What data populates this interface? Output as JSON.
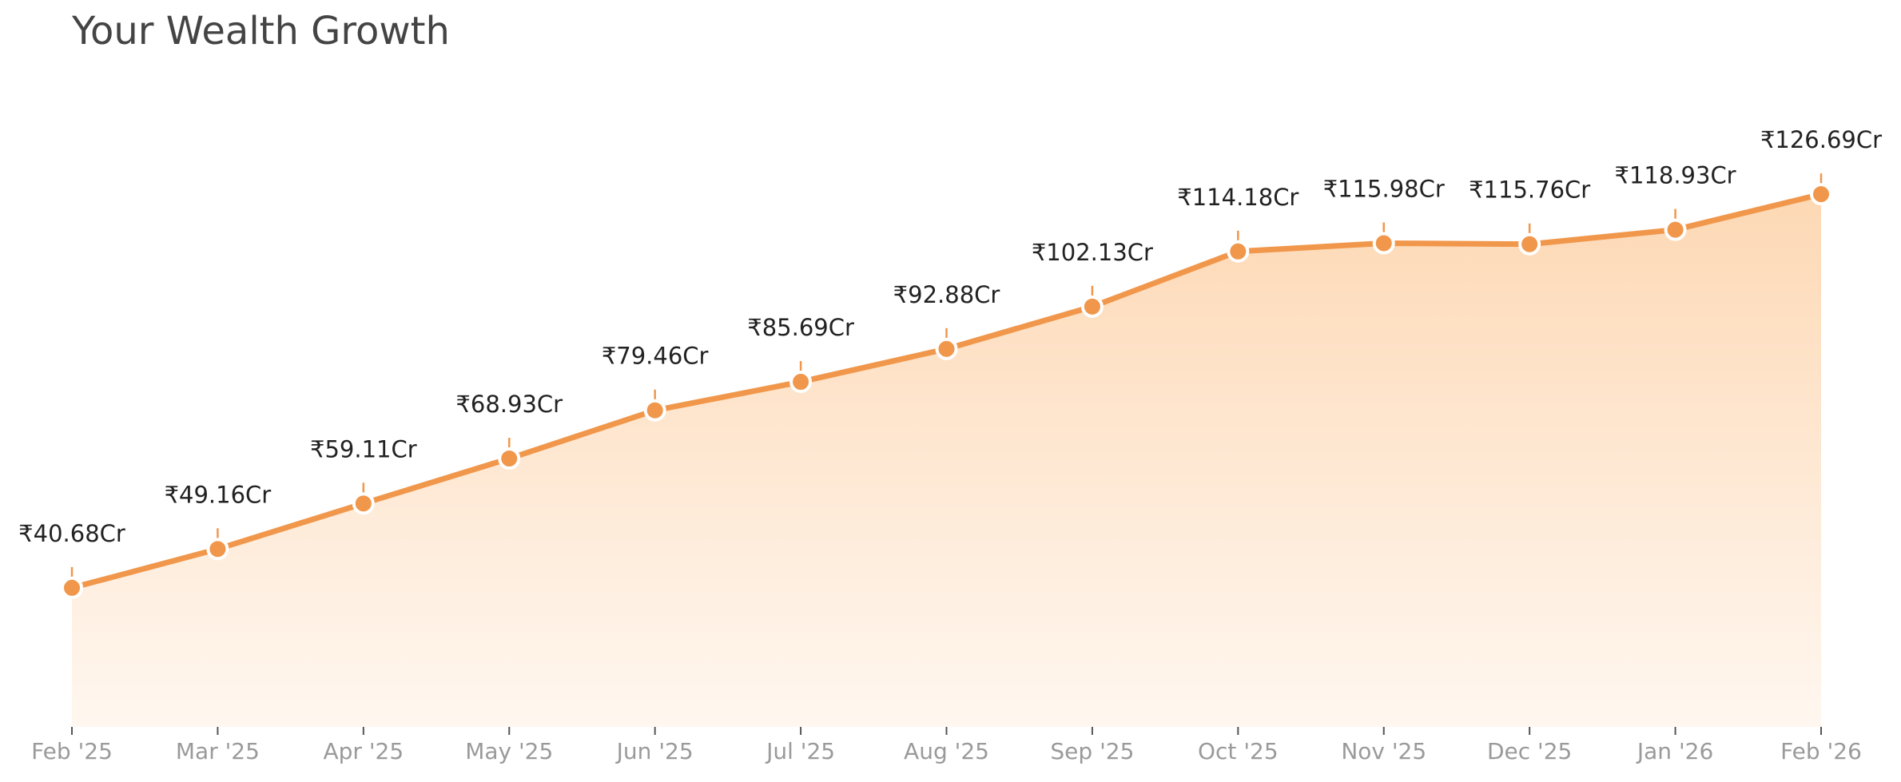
{
  "chart_data": {
    "type": "line",
    "title": "Your Wealth Growth",
    "categories": [
      "Feb '25",
      "Mar '25",
      "Apr '25",
      "May '25",
      "Jun '25",
      "Jul '25",
      "Aug '25",
      "Sep '25",
      "Oct '25",
      "Nov '25",
      "Dec '25",
      "Jan '26",
      "Feb '26"
    ],
    "series": [
      {
        "color": "#f0974b",
        "values": [
          40.68,
          49.16,
          59.11,
          68.93,
          79.46,
          85.69,
          92.88,
          102.13,
          114.18,
          115.98,
          115.76,
          118.93,
          126.69
        ],
        "value_labels": [
          "₹40.68Cr",
          "₹49.16Cr",
          "₹59.11Cr",
          "₹68.93Cr",
          "₹79.46Cr",
          "₹85.69Cr",
          "₹92.88Cr",
          "₹102.13Cr",
          "₹114.18Cr",
          "₹115.98Cr",
          "₹115.76Cr",
          "₹118.93Cr",
          "₹126.69Cr"
        ]
      }
    ],
    "ylim": [
      10.3,
      148
    ]
  }
}
